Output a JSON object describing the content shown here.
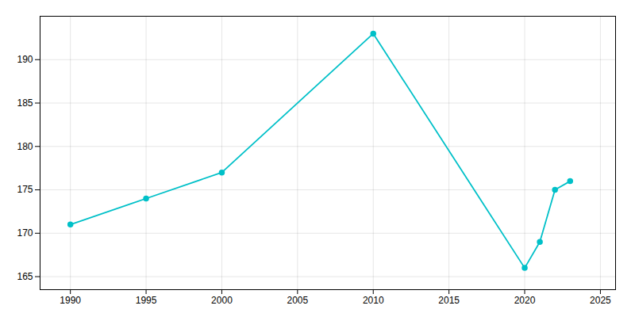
{
  "chart_data": {
    "type": "line",
    "x": [
      1990,
      1995,
      2000,
      2010,
      2020,
      2021,
      2022,
      2023
    ],
    "values": [
      171,
      174,
      177,
      193,
      166,
      169,
      175,
      176
    ],
    "color": "#00c0c8",
    "marker": "circle",
    "xlim": [
      1988,
      2026
    ],
    "xticks": [
      1990,
      1995,
      2000,
      2005,
      2010,
      2015,
      2020,
      2025
    ],
    "ylim": [
      163.5,
      195
    ],
    "yticks": [
      165,
      170,
      175,
      180,
      185,
      190
    ],
    "grid": true
  }
}
